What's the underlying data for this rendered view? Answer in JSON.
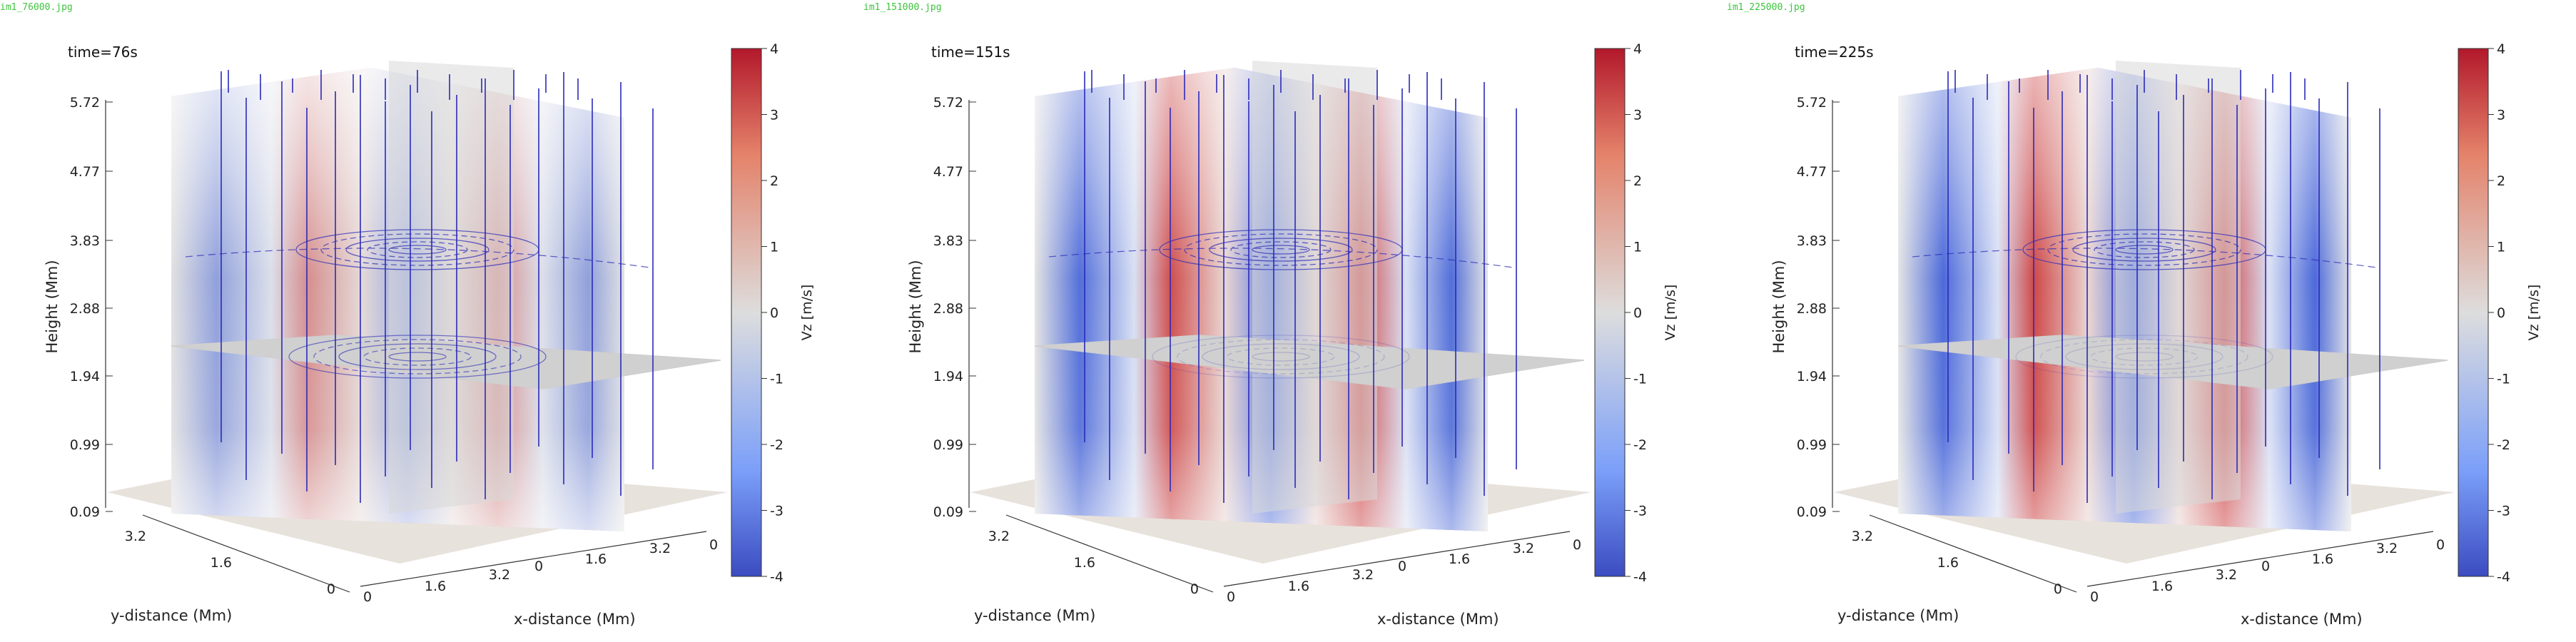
{
  "panels": [
    {
      "filename": "im1_76000.jpg",
      "time_label": "time=76s",
      "intensity": 0.45,
      "colorbar": {
        "label": "Vz [m/s]",
        "ticks": [
          "4",
          "3",
          "2",
          "1",
          "0",
          "-1",
          "-2",
          "-3",
          "-4"
        ]
      },
      "z_axis": {
        "label": "Height (Mm)",
        "ticks": [
          "5.72",
          "4.77",
          "3.83",
          "2.88",
          "1.94",
          "0.99",
          "0.09"
        ]
      },
      "y_axis": {
        "label": "y-distance (Mm)",
        "ticks": [
          "3.2",
          "1.6",
          "0"
        ]
      },
      "x_axis": {
        "label": "x-distance (Mm)",
        "ticks": [
          "0",
          "1.6",
          "3.2",
          "0",
          "1.6",
          "3.2",
          "0"
        ]
      }
    },
    {
      "filename": "im1_151000.jpg",
      "time_label": "time=151s",
      "intensity": 0.95,
      "colorbar": {
        "label": "Vz [m/s]",
        "ticks": [
          "4",
          "3",
          "2",
          "1",
          "0",
          "-1",
          "-2",
          "-3",
          "-4"
        ]
      },
      "z_axis": {
        "label": "Height (Mm)",
        "ticks": [
          "5.72",
          "4.77",
          "3.83",
          "2.88",
          "1.94",
          "0.99",
          "0.09"
        ]
      },
      "y_axis": {
        "label": "y-distance (Mm)",
        "ticks": [
          "3.2",
          "1.6",
          "0"
        ]
      },
      "x_axis": {
        "label": "x-distance (Mm)",
        "ticks": [
          "0",
          "1.6",
          "3.2",
          "0",
          "1.6",
          "3.2",
          "0"
        ]
      }
    },
    {
      "filename": "im1_225000.jpg",
      "time_label": "time=225s",
      "intensity": 1.0,
      "colorbar": {
        "label": "Vz [m/s]",
        "ticks": [
          "4",
          "3",
          "2",
          "1",
          "0",
          "-1",
          "-2",
          "-3",
          "-4"
        ]
      },
      "z_axis": {
        "label": "Height (Mm)",
        "ticks": [
          "5.72",
          "4.77",
          "3.83",
          "2.88",
          "1.94",
          "0.99",
          "0.09"
        ]
      },
      "y_axis": {
        "label": "y-distance (Mm)",
        "ticks": [
          "3.2",
          "1.6",
          "0"
        ]
      },
      "x_axis": {
        "label": "x-distance (Mm)",
        "ticks": [
          "0",
          "1.6",
          "3.2",
          "0",
          "1.6",
          "3.2",
          "0"
        ]
      }
    }
  ],
  "colors": {
    "positive": "#b2182b",
    "neutral": "#dddddd",
    "negative": "#3b4cc0",
    "field_lines": "#2a2ab8",
    "filename_text": "#3cc43c"
  }
}
